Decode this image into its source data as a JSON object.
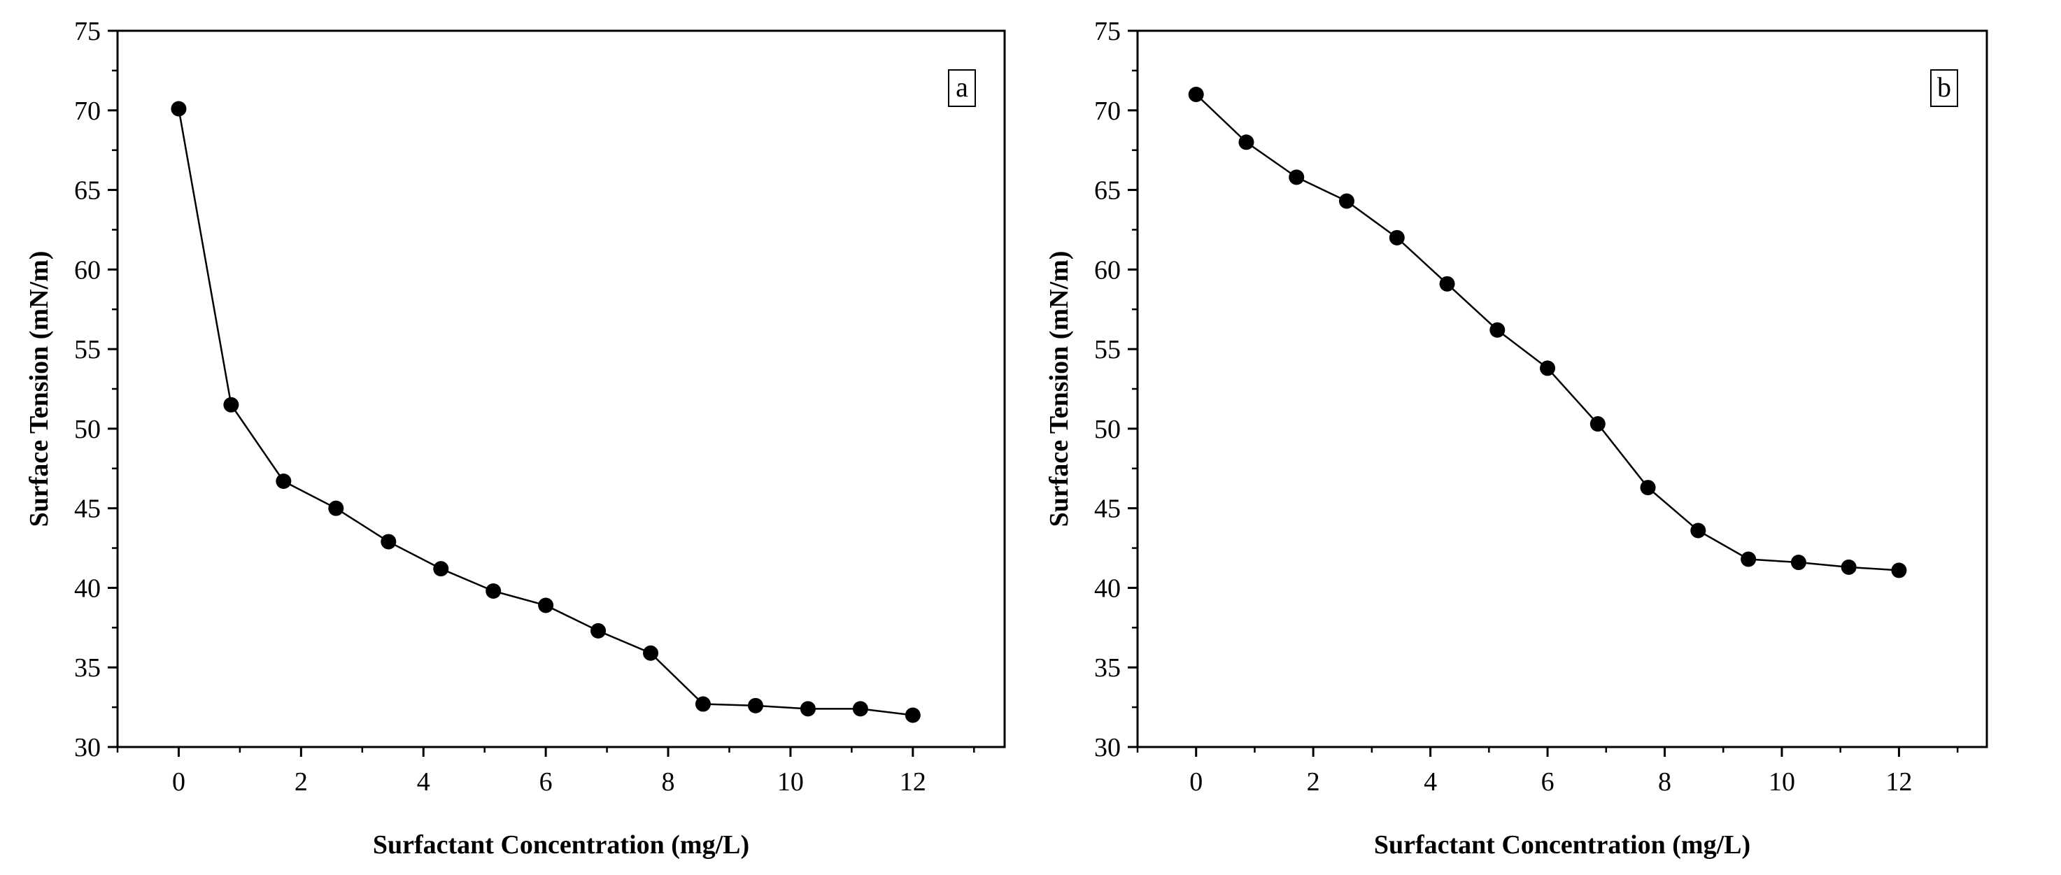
{
  "chart_data": [
    {
      "type": "line",
      "panel_label": "a",
      "xlabel": "Surfactant Concentration (mg/L)",
      "ylabel": "Surface Tension (mN/m)",
      "xlim": [
        -1,
        13.5
      ],
      "ylim": [
        30,
        75
      ],
      "xticks": [
        0,
        2,
        4,
        6,
        8,
        10,
        12
      ],
      "yticks": [
        30,
        35,
        40,
        45,
        50,
        55,
        60,
        65,
        70,
        75
      ],
      "series": [
        {
          "name": "a",
          "x": [
            0,
            0.857,
            1.714,
            2.571,
            3.429,
            4.286,
            5.143,
            6.0,
            6.857,
            7.714,
            8.571,
            9.429,
            10.286,
            11.143,
            12.0
          ],
          "y": [
            70.1,
            51.5,
            46.7,
            45.0,
            42.9,
            41.2,
            39.8,
            38.9,
            37.3,
            35.9,
            32.7,
            32.6,
            32.4,
            32.4,
            32.0
          ]
        }
      ]
    },
    {
      "type": "line",
      "panel_label": "b",
      "xlabel": "Surfactant Concentration (mg/L)",
      "ylabel": "Surface Tension (mN/m)",
      "xlim": [
        -1,
        13.5
      ],
      "ylim": [
        30,
        75
      ],
      "xticks": [
        0,
        2,
        4,
        6,
        8,
        10,
        12
      ],
      "yticks": [
        30,
        35,
        40,
        45,
        50,
        55,
        60,
        65,
        70,
        75
      ],
      "series": [
        {
          "name": "b",
          "x": [
            0,
            0.857,
            1.714,
            2.571,
            3.429,
            4.286,
            5.143,
            6.0,
            6.857,
            7.714,
            8.571,
            9.429,
            10.286,
            11.143,
            12.0
          ],
          "y": [
            71.0,
            68.0,
            65.8,
            64.3,
            62.0,
            59.1,
            56.2,
            53.8,
            50.3,
            46.3,
            43.6,
            41.8,
            41.6,
            41.3,
            41.1
          ]
        }
      ]
    }
  ]
}
